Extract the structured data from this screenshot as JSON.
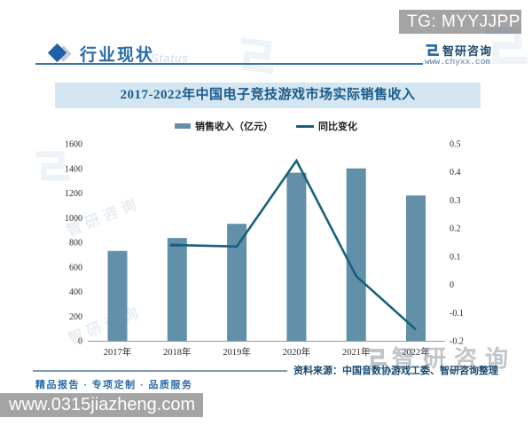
{
  "overlay": {
    "tg_badge": "TG: MYYJJPP",
    "bottom_url": "www.0315jiazheng.com"
  },
  "header": {
    "title": "行业现状",
    "status_watermark": "Status",
    "logo_name": "智研咨询",
    "logo_url": "www.chyxx.com"
  },
  "chart": {
    "colors": {
      "bar": "#6190a8",
      "line": "#18607c",
      "accent": "#2a6da8",
      "banner_bg": "#d3e6f1",
      "banner_text": "#1b5a8a",
      "axis": "#9a9a9a",
      "badge_bg": "#a4a4a4"
    }
  },
  "chart_data": {
    "type": "bar",
    "title": "2017-2022年中国电子竞技游戏市场实际销售收入",
    "categories": [
      "2017年",
      "2018年",
      "2019年",
      "2020年",
      "2021年",
      "2022年"
    ],
    "series": [
      {
        "name": "销售收入（亿元）",
        "type": "bar",
        "axis": "left",
        "values": [
          730,
          835,
          950,
          1365,
          1400,
          1180
        ]
      },
      {
        "name": "同比变化",
        "type": "line",
        "axis": "right",
        "values": [
          null,
          0.14,
          0.135,
          0.44,
          0.03,
          -0.16
        ]
      }
    ],
    "left_axis": {
      "min": 0,
      "max": 1600,
      "step": 200
    },
    "right_axis": {
      "min": -0.2,
      "max": 0.5,
      "step": 0.1
    },
    "grid": false,
    "legend_position": "top"
  },
  "watermarks": {
    "brand": "智研咨询"
  },
  "footer": {
    "source": "资料来源：中国音数协游戏工委、智研咨询整理",
    "tagline": "精品报告 · 专项定制 · 品质服务"
  }
}
